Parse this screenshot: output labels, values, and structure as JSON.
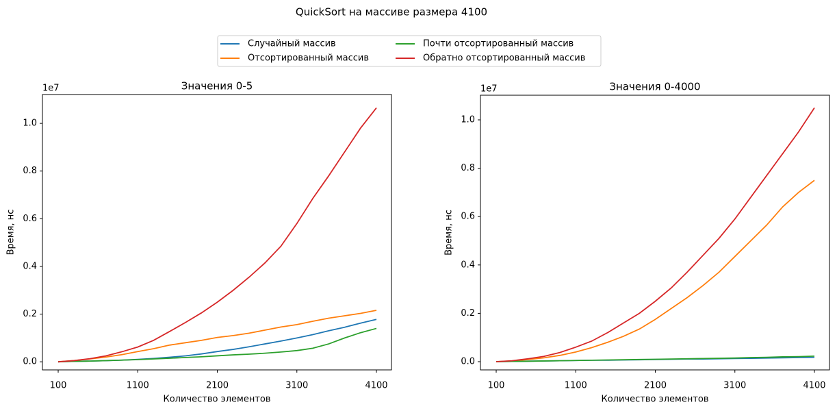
{
  "title": "QuickSort на массиве размера 4100",
  "legend": {
    "location": "upper center",
    "columns": 2
  },
  "chart_data": [
    {
      "type": "line",
      "title": "Значения 0-5",
      "x_label": "Количество элементов",
      "y_label": "Время, нс",
      "y_offset_label": "1e7",
      "x": [
        100,
        300,
        500,
        700,
        900,
        1100,
        1300,
        1500,
        1700,
        1900,
        2100,
        2300,
        2500,
        2700,
        2900,
        3100,
        3300,
        3500,
        3700,
        3900,
        4100
      ],
      "xlim": [
        -98,
        4289
      ],
      "xticks": [
        100,
        1100,
        2100,
        3100,
        4100
      ],
      "ylim": [
        -0.034,
        1.121
      ],
      "yticks": [
        {
          "value": 0,
          "label": "0.0"
        },
        0.2,
        0.4,
        0.6,
        0.8,
        {
          "value": 1,
          "label": "1.0"
        }
      ],
      "series": [
        {
          "name": "Случайный массив",
          "color": "#1f77b4",
          "values": [
            0,
            0.002,
            0.003,
            0.005,
            0.007,
            0.01,
            0.014,
            0.019,
            0.025,
            0.033,
            0.043,
            0.052,
            0.063,
            0.075,
            0.087,
            0.1,
            0.114,
            0.13,
            0.145,
            0.162,
            0.178
          ]
        },
        {
          "name": "Отсортированный массив",
          "color": "#ff7f0e",
          "values": [
            0,
            0.005,
            0.012,
            0.02,
            0.03,
            0.043,
            0.055,
            0.07,
            0.08,
            0.09,
            0.102,
            0.11,
            0.12,
            0.133,
            0.146,
            0.156,
            0.17,
            0.183,
            0.193,
            0.203,
            0.216
          ]
        },
        {
          "name": "Почти отсортированный массив",
          "color": "#2ca02c",
          "values": [
            0,
            0.002,
            0.003,
            0.005,
            0.007,
            0.009,
            0.012,
            0.015,
            0.018,
            0.021,
            0.025,
            0.029,
            0.032,
            0.036,
            0.041,
            0.047,
            0.057,
            0.075,
            0.1,
            0.122,
            0.14
          ]
        },
        {
          "name": "Обратно отсортированный массив",
          "color": "#d62728",
          "values": [
            0,
            0.005,
            0.013,
            0.025,
            0.042,
            0.062,
            0.09,
            0.127,
            0.165,
            0.205,
            0.25,
            0.3,
            0.355,
            0.415,
            0.485,
            0.58,
            0.685,
            0.78,
            0.88,
            0.98,
            1.065
          ]
        }
      ]
    },
    {
      "type": "line",
      "title": "Значения 0-4000",
      "x_label": "Количество элементов",
      "y_label": "Время, нс",
      "y_offset_label": "1e7",
      "x": [
        100,
        300,
        500,
        700,
        900,
        1100,
        1300,
        1500,
        1700,
        1900,
        2100,
        2300,
        2500,
        2700,
        2900,
        3100,
        3300,
        3500,
        3700,
        3900,
        4100
      ],
      "xlim": [
        -98,
        4289
      ],
      "xticks": [
        100,
        1100,
        2100,
        3100,
        4100
      ],
      "ylim": [
        -0.034,
        1.102
      ],
      "yticks": [
        {
          "value": 0,
          "label": "0.0"
        },
        0.2,
        0.4,
        0.6,
        0.8,
        {
          "value": 1,
          "label": "1.0"
        }
      ],
      "series": [
        {
          "name": "Случайный массив",
          "color": "#1f77b4",
          "values": [
            0,
            0.001,
            0.002,
            0.003,
            0.004,
            0.005,
            0.006,
            0.006,
            0.007,
            0.008,
            0.009,
            0.01,
            0.011,
            0.011,
            0.012,
            0.013,
            0.014,
            0.015,
            0.016,
            0.017,
            0.018
          ]
        },
        {
          "name": "Отсортированный массив",
          "color": "#ff7f0e",
          "values": [
            0,
            0.003,
            0.009,
            0.016,
            0.026,
            0.04,
            0.058,
            0.08,
            0.105,
            0.135,
            0.175,
            0.22,
            0.265,
            0.315,
            0.37,
            0.435,
            0.5,
            0.565,
            0.64,
            0.7,
            0.75
          ]
        },
        {
          "name": "Почти отсортированный массив",
          "color": "#2ca02c",
          "values": [
            0,
            0.001,
            0.002,
            0.003,
            0.004,
            0.005,
            0.006,
            0.007,
            0.008,
            0.009,
            0.01,
            0.011,
            0.012,
            0.013,
            0.014,
            0.015,
            0.017,
            0.018,
            0.02,
            0.021,
            0.023
          ]
        },
        {
          "name": "Обратно отсортированный массив",
          "color": "#d62728",
          "values": [
            0,
            0.004,
            0.012,
            0.022,
            0.038,
            0.06,
            0.085,
            0.12,
            0.16,
            0.2,
            0.25,
            0.305,
            0.37,
            0.44,
            0.51,
            0.59,
            0.68,
            0.77,
            0.86,
            0.95,
            1.05
          ]
        }
      ]
    }
  ]
}
